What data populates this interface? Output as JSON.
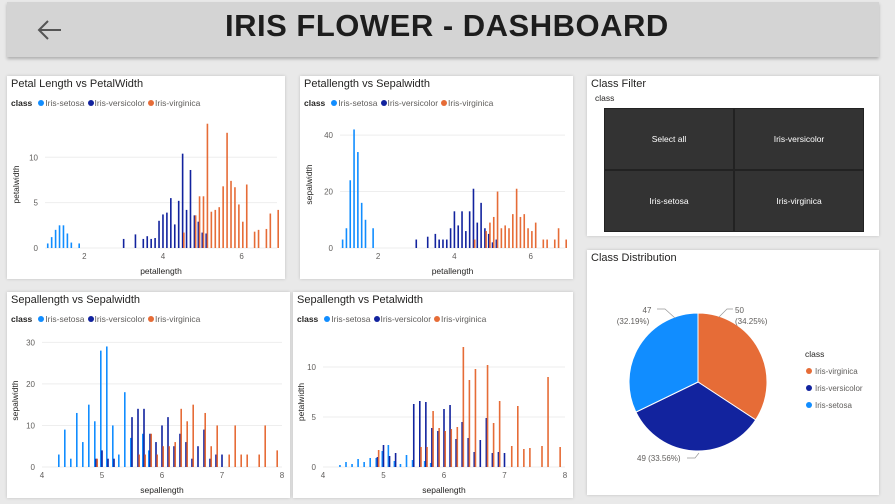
{
  "header": {
    "title": "IRIS FLOWER - DASHBOARD",
    "back_icon": "arrow-left-icon"
  },
  "colors": {
    "setosa": "#118dff",
    "versicolor": "#12239e",
    "virginica": "#e66c37"
  },
  "legend": {
    "label": "class",
    "items": [
      "Iris-setosa",
      "Iris-versicolor",
      "Iris-virginica"
    ]
  },
  "class_filter": {
    "title": "Class Filter",
    "label": "class",
    "buttons": [
      "Select all",
      "Iris-versicolor",
      "Iris-setosa",
      "Iris-virginica"
    ]
  },
  "chart_data": [
    {
      "type": "bar",
      "title": "Petal Length vs PetalWidth",
      "xlabel": "petallength",
      "ylabel": "petalwidth",
      "xlim": [
        1,
        6.9
      ],
      "ylim": [
        0,
        14
      ],
      "xticks": [
        "2",
        "4",
        "6"
      ],
      "yticks": [
        "0",
        "5",
        "10"
      ],
      "series": [
        {
          "name": "Iris-setosa",
          "x": [
            1.1,
            1.2,
            1.3,
            1.4,
            1.5,
            1.6,
            1.7,
            1.9
          ],
          "y": [
            0.5,
            1.2,
            2,
            2.5,
            2.5,
            1.6,
            0.6,
            0.5
          ]
        },
        {
          "name": "Iris-versicolor",
          "x": [
            3.0,
            3.3,
            3.5,
            3.6,
            3.7,
            3.8,
            3.9,
            4.0,
            4.1,
            4.2,
            4.3,
            4.4,
            4.5,
            4.6,
            4.7,
            4.8,
            4.9,
            5.0,
            5.1
          ],
          "y": [
            1,
            1.5,
            1,
            1.3,
            1,
            1.1,
            3,
            3.7,
            3.9,
            5.5,
            2.6,
            5.2,
            10.4,
            4.2,
            8.6,
            3.6,
            2.9,
            1.7,
            1.6
          ]
        },
        {
          "name": "Iris-virginica",
          "x": [
            4.5,
            4.8,
            4.9,
            5.0,
            5.1,
            5.2,
            5.3,
            5.4,
            5.5,
            5.6,
            5.7,
            5.8,
            5.9,
            6.0,
            6.1,
            6.3,
            6.4,
            6.6,
            6.7,
            6.9
          ],
          "y": [
            1.7,
            3.6,
            5.7,
            5.7,
            13.7,
            4,
            4.2,
            4.5,
            6.8,
            12.7,
            7.4,
            6.7,
            4.8,
            2.9,
            7,
            1.8,
            2,
            2.1,
            3.8,
            4.2
          ]
        }
      ]
    },
    {
      "type": "bar",
      "title": "Petallength vs Sepalwidth",
      "xlabel": "petallength",
      "ylabel": "sepalwidth",
      "xlim": [
        1,
        6.9
      ],
      "ylim": [
        0,
        45
      ],
      "xticks": [
        "2",
        "4",
        "6"
      ],
      "yticks": [
        "0",
        "20",
        "40"
      ],
      "series": [
        {
          "name": "Iris-setosa",
          "x": [
            1.1,
            1.2,
            1.3,
            1.4,
            1.5,
            1.6,
            1.7,
            1.9
          ],
          "y": [
            3,
            7,
            24,
            42,
            34,
            16,
            10,
            7
          ]
        },
        {
          "name": "Iris-versicolor",
          "x": [
            3.0,
            3.3,
            3.5,
            3.6,
            3.7,
            3.8,
            3.9,
            4.0,
            4.1,
            4.2,
            4.3,
            4.4,
            4.5,
            4.6,
            4.7,
            4.8,
            4.9,
            5.0,
            5.1
          ],
          "y": [
            3,
            4,
            5,
            3,
            3,
            3,
            7,
            13,
            8,
            13,
            6,
            13,
            21,
            9,
            16,
            7,
            5,
            2,
            3
          ]
        },
        {
          "name": "Iris-virginica",
          "x": [
            4.5,
            4.8,
            4.9,
            5.0,
            5.1,
            5.2,
            5.3,
            5.4,
            5.5,
            5.6,
            5.7,
            5.8,
            5.9,
            6.0,
            6.1,
            6.3,
            6.4,
            6.6,
            6.7,
            6.9
          ],
          "y": [
            3,
            6,
            9,
            11,
            20,
            7,
            8,
            7,
            12,
            21,
            11,
            12,
            7,
            6,
            9,
            3,
            3,
            3,
            7,
            3
          ]
        }
      ]
    },
    {
      "type": "bar",
      "title": "Sepallength vs Sepalwidth",
      "xlabel": "sepallength",
      "ylabel": "sepalwidth",
      "xlim": [
        4,
        8
      ],
      "ylim": [
        0,
        32
      ],
      "xticks": [
        "4",
        "5",
        "6",
        "7",
        "8"
      ],
      "yticks": [
        "0",
        "10",
        "20",
        "30"
      ],
      "series": [
        {
          "name": "Iris-setosa",
          "x": [
            4.3,
            4.4,
            4.5,
            4.6,
            4.7,
            4.8,
            4.9,
            5.0,
            5.1,
            5.2,
            5.3,
            5.4,
            5.5,
            5.7,
            5.8
          ],
          "y": [
            3,
            9,
            2,
            13,
            6,
            15,
            11,
            28,
            29,
            10,
            3,
            18,
            7,
            8,
            4
          ]
        },
        {
          "name": "Iris-versicolor",
          "x": [
            4.9,
            5.0,
            5.1,
            5.2,
            5.5,
            5.6,
            5.7,
            5.8,
            5.9,
            6.0,
            6.1,
            6.2,
            6.3,
            6.4,
            6.5,
            6.6,
            6.7,
            6.8,
            6.9,
            7.0
          ],
          "y": [
            2,
            4,
            2,
            2,
            12,
            14,
            14,
            8,
            6,
            10,
            12,
            5,
            8,
            6,
            2,
            5,
            9,
            2,
            3,
            3
          ]
        },
        {
          "name": "Iris-virginica",
          "x": [
            4.9,
            5.6,
            5.7,
            5.8,
            5.9,
            6.0,
            6.1,
            6.2,
            6.3,
            6.4,
            6.5,
            6.7,
            6.8,
            6.9,
            7.1,
            7.2,
            7.3,
            7.4,
            7.6,
            7.7,
            7.9
          ],
          "y": [
            2,
            3,
            3,
            8,
            3,
            5,
            5,
            6,
            14,
            11,
            15,
            13,
            5,
            10,
            3,
            10,
            3,
            3,
            3,
            10,
            4
          ]
        }
      ]
    },
    {
      "type": "bar",
      "title": "Sepallength vs Petalwidth",
      "xlabel": "sepallength",
      "ylabel": "petalwidth",
      "xlim": [
        4,
        8
      ],
      "ylim": [
        0,
        13
      ],
      "xticks": [
        "4",
        "5",
        "6",
        "7",
        "8"
      ],
      "yticks": [
        "0",
        "5",
        "10"
      ],
      "series": [
        {
          "name": "Iris-setosa",
          "x": [
            4.3,
            4.4,
            4.5,
            4.6,
            4.7,
            4.8,
            4.9,
            5.0,
            5.1,
            5.2,
            5.3,
            5.4,
            5.5,
            5.7,
            5.8
          ],
          "y": [
            0.2,
            0.5,
            0.3,
            0.8,
            0.5,
            0.9,
            0.9,
            1.6,
            2.2,
            0.6,
            0.3,
            1.2,
            0.7,
            0.6,
            0.4
          ]
        },
        {
          "name": "Iris-versicolor",
          "x": [
            4.9,
            5.0,
            5.1,
            5.2,
            5.5,
            5.6,
            5.7,
            5.8,
            5.9,
            6.0,
            6.1,
            6.2,
            6.3,
            6.4,
            6.5,
            6.6,
            6.7,
            6.8,
            6.9,
            7.0
          ],
          "y": [
            1,
            2.2,
            1.1,
            1.4,
            6.3,
            6.6,
            6.5,
            3.9,
            3.6,
            5.8,
            6.2,
            2.8,
            4.5,
            2.9,
            1.5,
            2.7,
            4.9,
            1.4,
            1.5,
            1.4
          ]
        },
        {
          "name": "Iris-virginica",
          "x": [
            4.9,
            5.6,
            5.7,
            5.8,
            5.9,
            6.0,
            6.1,
            6.2,
            6.3,
            6.4,
            6.5,
            6.7,
            6.8,
            6.9,
            7.1,
            7.2,
            7.3,
            7.4,
            7.6,
            7.7,
            7.9
          ],
          "y": [
            1.7,
            2,
            2,
            5.6,
            3.9,
            3.6,
            3.8,
            4,
            12,
            8.7,
            9.8,
            10.2,
            4.4,
            6.6,
            2.1,
            6.1,
            1.8,
            1.9,
            2.1,
            9,
            2
          ]
        }
      ]
    },
    {
      "type": "pie",
      "title": "Class Distribution",
      "legend_title": "class",
      "labels": [
        "Iris-virginica",
        "Iris-versicolor",
        "Iris-setosa"
      ],
      "values": [
        50,
        49,
        47
      ],
      "value_labels": [
        "50",
        "49 (33.56%)",
        "47"
      ],
      "percent_labels": [
        "(34.25%)",
        "",
        "(32.19%)"
      ]
    }
  ]
}
